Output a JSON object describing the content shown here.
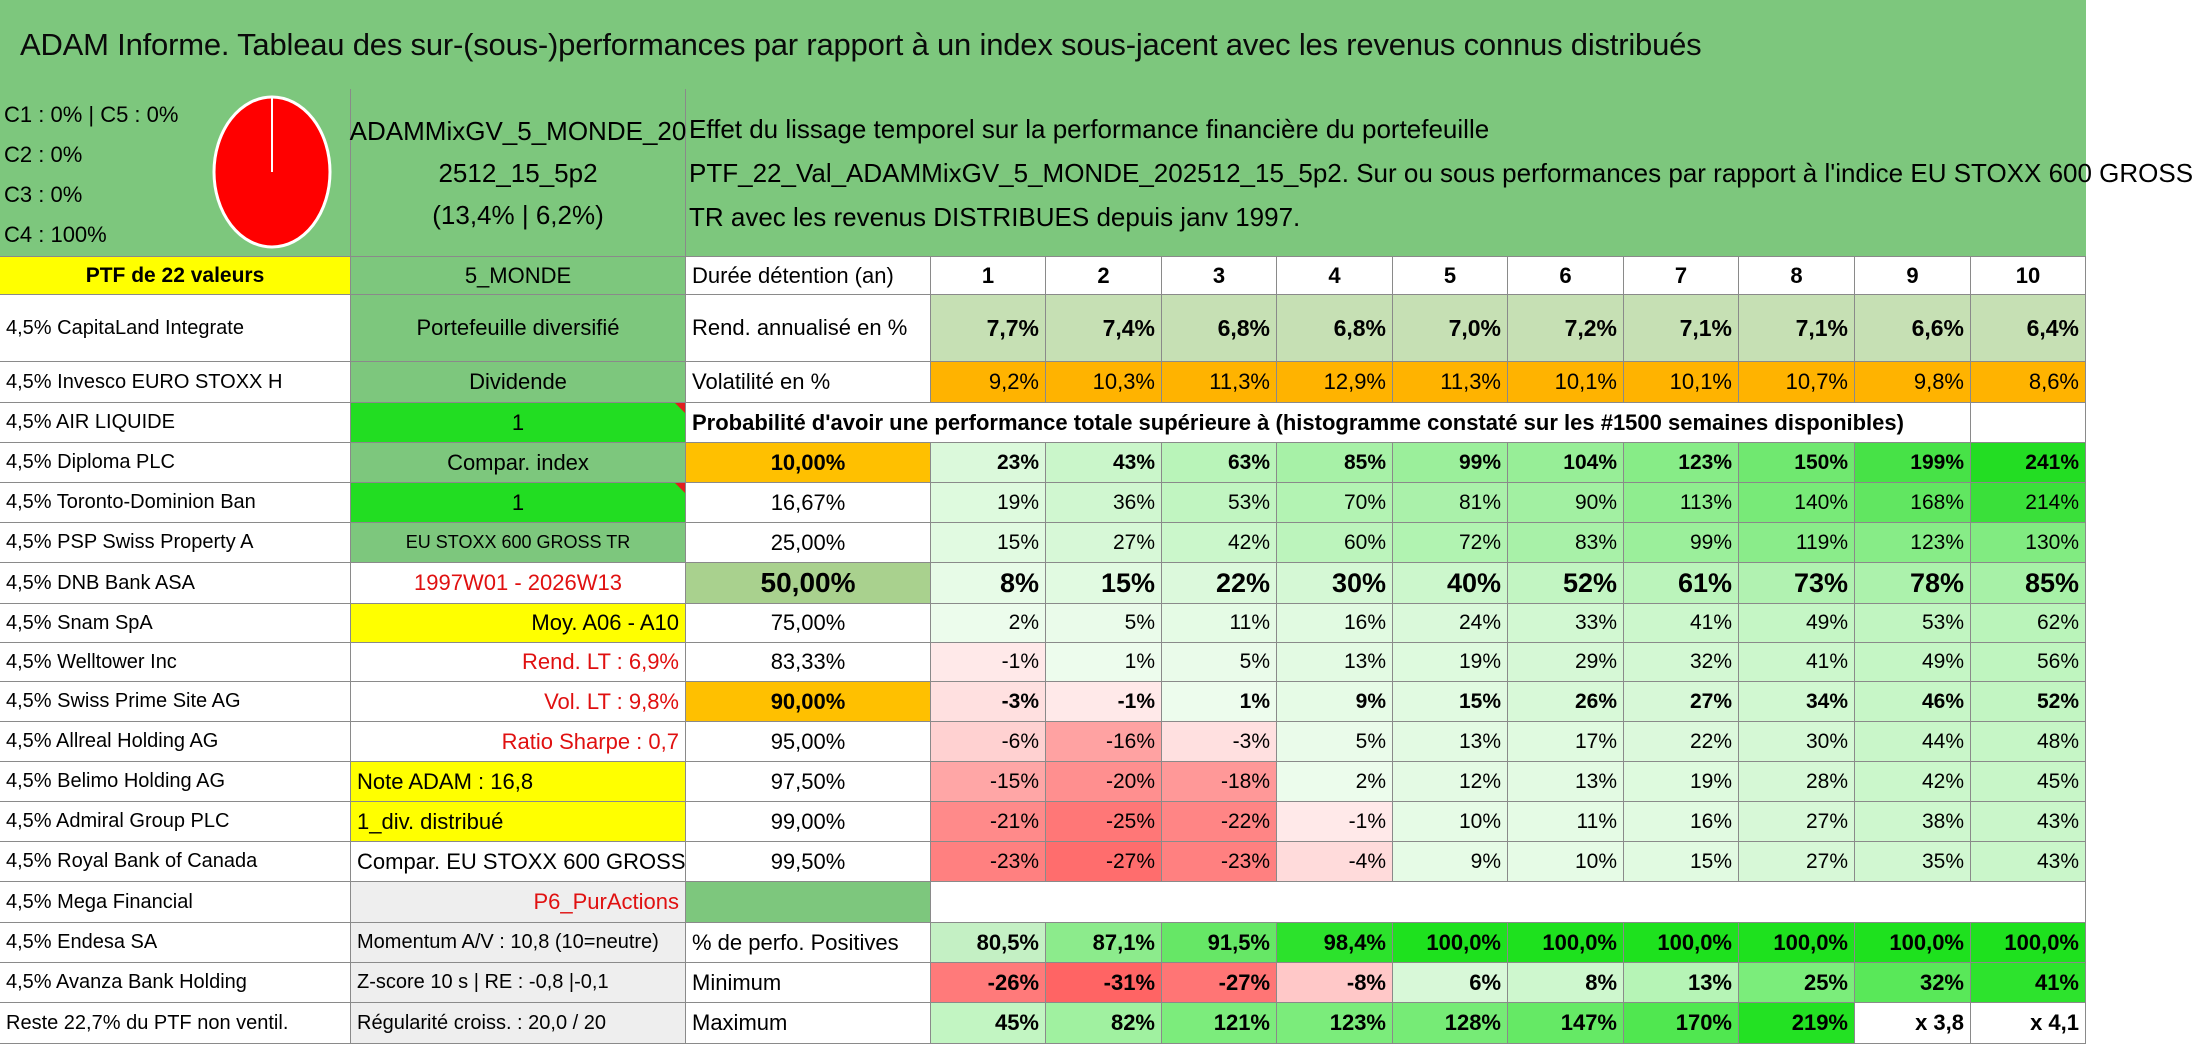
{
  "title": "ADAM Informe. Tableau des sur-(sous-)performances par rapport à un index sous-jacent avec les revenus connus distribués",
  "legend": [
    "C1 : 0% | C5 : 0%",
    "C2 : 0%",
    "C3 : 0%",
    "C4 : 100%"
  ],
  "pie": {
    "fill": "#ff0000"
  },
  "portfolio_name": {
    "line1": "ADAMMixGV_5_MONDE_20",
    "line2": "2512_15_5p2",
    "line3": "(13,4% | 6,2%)"
  },
  "description": {
    "line1": "Effet du lissage temporel sur la performance financière du portefeuille",
    "line2": "PTF_22_Val_ADAMMixGV_5_MONDE_202512_15_5p2. Sur ou sous performances par rapport à l'indice EU STOXX 600 GROSS",
    "line3": "TR avec les revenus DISTRIBUES depuis janv 1997."
  },
  "ptf_header": "PTF de 22 valeurs",
  "holdings": [
    "4,5% CapitaLand Integrate",
    "4,5% Invesco EURO STOXX H",
    "4,5% AIR LIQUIDE",
    "4,5% Diploma PLC",
    "4,5% Toronto-Dominion Ban",
    "4,5% PSP Swiss Property A",
    "4,5% DNB Bank ASA",
    "4,5% Snam SpA",
    "4,5% Welltower Inc",
    "4,5% Swiss Prime Site AG",
    "4,5% Allreal Holding AG",
    "4,5% Belimo Holding AG",
    "4,5% Admiral Group PLC",
    "4,5% Royal Bank of Canada",
    "4,5% Mega Financial",
    "4,5% Endesa SA",
    "4,5% Avanza Bank Holding",
    "Reste 22,7% du PTF non ventil."
  ],
  "info": [
    "5_MONDE",
    "Portefeuille diversifié",
    "Dividende",
    "1",
    "Compar. index",
    "1",
    "EU STOXX 600 GROSS TR",
    "1997W01 - 2026W13",
    "Moy. A06 - A10",
    "Rend. LT : 6,9%",
    "Vol. LT : 9,8%",
    "Ratio Sharpe : 0,7",
    "Note ADAM : 16,8",
    "1_div. distribué",
    "Compar. EU STOXX 600 GROSS TR",
    "P6_PurActions",
    "Momentum A/V : 10,8 (10=neutre)",
    "Z-score 10 s | RE : -0,8 |-0,1",
    "Régularité croiss. : 20,0 / 20"
  ],
  "labels": {
    "duree": "Durée détention (an)",
    "rend": "Rend. annualisé en %",
    "vol": "Volatilité en %",
    "proba": "Probabilité d'avoir une performance totale supérieure à (histogramme constaté sur les #1500 semaines disponibles)",
    "pos": "% de perfo. Positives",
    "min": "Minimum",
    "max": "Maximum"
  },
  "years": [
    "1",
    "2",
    "3",
    "4",
    "5",
    "6",
    "7",
    "8",
    "9",
    "10"
  ],
  "rend": [
    "7,7%",
    "7,4%",
    "6,8%",
    "6,8%",
    "7,0%",
    "7,2%",
    "7,1%",
    "7,1%",
    "6,6%",
    "6,4%"
  ],
  "vol": [
    "9,2%",
    "10,3%",
    "11,3%",
    "12,9%",
    "11,3%",
    "10,1%",
    "10,1%",
    "10,7%",
    "9,8%",
    "8,6%"
  ],
  "quantiles": [
    {
      "q": "10,00%",
      "vals": [
        "23%",
        "43%",
        "63%",
        "85%",
        "99%",
        "104%",
        "123%",
        "150%",
        "199%",
        "241%"
      ]
    },
    {
      "q": "16,67%",
      "vals": [
        "19%",
        "36%",
        "53%",
        "70%",
        "81%",
        "90%",
        "113%",
        "140%",
        "168%",
        "214%"
      ]
    },
    {
      "q": "25,00%",
      "vals": [
        "15%",
        "27%",
        "42%",
        "60%",
        "72%",
        "83%",
        "99%",
        "119%",
        "123%",
        "130%"
      ]
    },
    {
      "q": "50,00%",
      "vals": [
        "8%",
        "15%",
        "22%",
        "30%",
        "40%",
        "52%",
        "61%",
        "73%",
        "78%",
        "85%"
      ]
    },
    {
      "q": "75,00%",
      "vals": [
        "2%",
        "5%",
        "11%",
        "16%",
        "24%",
        "33%",
        "41%",
        "49%",
        "53%",
        "62%"
      ]
    },
    {
      "q": "83,33%",
      "vals": [
        "-1%",
        "1%",
        "5%",
        "13%",
        "19%",
        "29%",
        "32%",
        "41%",
        "49%",
        "56%"
      ]
    },
    {
      "q": "90,00%",
      "vals": [
        "-3%",
        "-1%",
        "1%",
        "9%",
        "15%",
        "26%",
        "27%",
        "34%",
        "46%",
        "52%"
      ]
    },
    {
      "q": "95,00%",
      "vals": [
        "-6%",
        "-16%",
        "-3%",
        "5%",
        "13%",
        "17%",
        "22%",
        "30%",
        "44%",
        "48%"
      ]
    },
    {
      "q": "97,50%",
      "vals": [
        "-15%",
        "-20%",
        "-18%",
        "2%",
        "12%",
        "13%",
        "19%",
        "28%",
        "42%",
        "45%"
      ]
    },
    {
      "q": "99,00%",
      "vals": [
        "-21%",
        "-25%",
        "-22%",
        "-1%",
        "10%",
        "11%",
        "16%",
        "27%",
        "38%",
        "43%"
      ]
    },
    {
      "q": "99,50%",
      "vals": [
        "-23%",
        "-27%",
        "-23%",
        "-4%",
        "9%",
        "10%",
        "15%",
        "27%",
        "35%",
        "43%"
      ]
    }
  ],
  "pos": [
    "80,5%",
    "87,1%",
    "91,5%",
    "98,4%",
    "100,0%",
    "100,0%",
    "100,0%",
    "100,0%",
    "100,0%",
    "100,0%"
  ],
  "min": [
    "-26%",
    "-31%",
    "-27%",
    "-8%",
    "6%",
    "8%",
    "13%",
    "25%",
    "32%",
    "41%"
  ],
  "max": [
    "45%",
    "82%",
    "121%",
    "123%",
    "128%",
    "147%",
    "170%",
    "219%",
    "x 3,8",
    "x 4,1"
  ],
  "colors": {
    "green": "#7dc77d",
    "yellow": "#ffff00",
    "orange": "#ffc000",
    "bright_green": "#22dd22",
    "red_text": "#e01010"
  }
}
